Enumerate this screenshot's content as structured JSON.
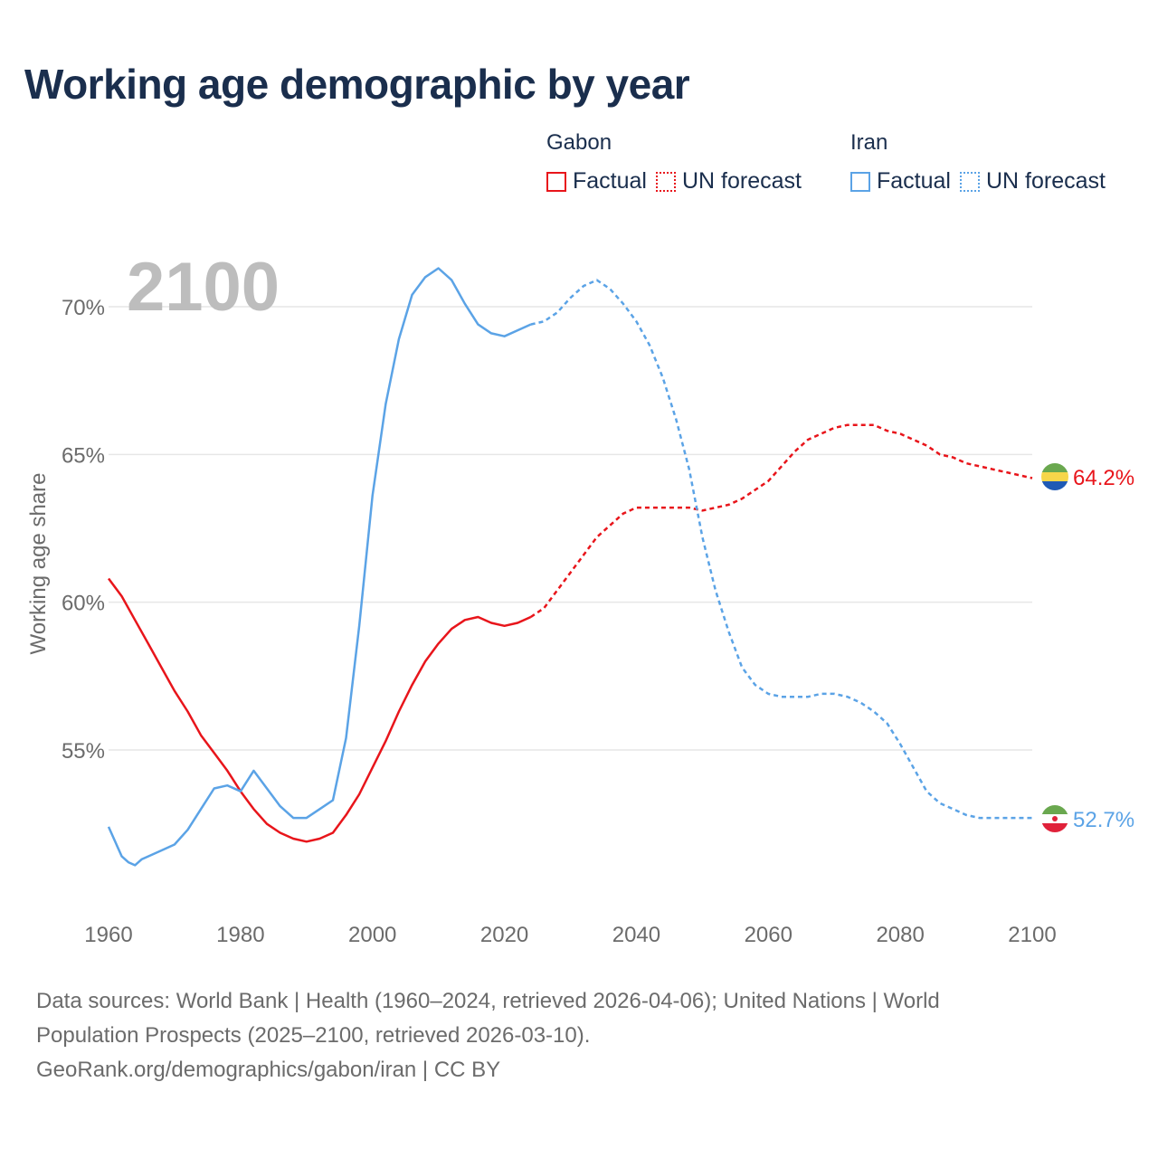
{
  "title": "Working age demographic by year",
  "legend": {
    "groups": [
      {
        "country": "Gabon",
        "factual_label": "Factual",
        "forecast_label": "UN forecast",
        "color": "#e8151b"
      },
      {
        "country": "Iran",
        "factual_label": "Factual",
        "forecast_label": "UN forecast",
        "color": "#5ba3e6"
      }
    ]
  },
  "chart_data": {
    "type": "line",
    "title": "Working age demographic by year",
    "xlabel": "",
    "ylabel": "Working age share",
    "year_display": "2100",
    "xlim": [
      1960,
      2100
    ],
    "ylim": [
      50,
      72
    ],
    "x_ticks": [
      1960,
      1980,
      2000,
      2020,
      2040,
      2060,
      2080,
      2100
    ],
    "y_ticks": [
      55,
      60,
      65,
      70
    ],
    "y_tick_labels": [
      "55%",
      "60%",
      "65%",
      "70%"
    ],
    "grid": true,
    "series": [
      {
        "name": "Gabon",
        "color": "#e8151b",
        "end_label": "64.2%",
        "flag_icon": "gabon-flag-icon",
        "factual": {
          "x": [
            1960,
            1962,
            1964,
            1966,
            1968,
            1970,
            1972,
            1974,
            1976,
            1978,
            1980,
            1982,
            1984,
            1986,
            1988,
            1990,
            1992,
            1994,
            1996,
            1998,
            2000,
            2002,
            2004,
            2006,
            2008,
            2010,
            2012,
            2014,
            2016,
            2018,
            2020,
            2022,
            2024
          ],
          "y": [
            60.8,
            60.2,
            59.4,
            58.6,
            57.8,
            57.0,
            56.3,
            55.5,
            54.9,
            54.3,
            53.6,
            53.0,
            52.5,
            52.2,
            52.0,
            51.9,
            52.0,
            52.2,
            52.8,
            53.5,
            54.4,
            55.3,
            56.3,
            57.2,
            58.0,
            58.6,
            59.1,
            59.4,
            59.5,
            59.3,
            59.2,
            59.3,
            59.5
          ]
        },
        "forecast": {
          "x": [
            2024,
            2026,
            2028,
            2030,
            2032,
            2034,
            2036,
            2038,
            2040,
            2042,
            2044,
            2046,
            2048,
            2050,
            2052,
            2054,
            2056,
            2058,
            2060,
            2062,
            2064,
            2066,
            2068,
            2070,
            2072,
            2074,
            2076,
            2078,
            2080,
            2082,
            2084,
            2086,
            2088,
            2090,
            2092,
            2094,
            2096,
            2098,
            2100
          ],
          "y": [
            59.5,
            59.8,
            60.4,
            61.0,
            61.6,
            62.2,
            62.6,
            63.0,
            63.2,
            63.2,
            63.2,
            63.2,
            63.2,
            63.1,
            63.2,
            63.3,
            63.5,
            63.8,
            64.1,
            64.6,
            65.1,
            65.5,
            65.7,
            65.9,
            66.0,
            66.0,
            66.0,
            65.8,
            65.7,
            65.5,
            65.3,
            65.0,
            64.9,
            64.7,
            64.6,
            64.5,
            64.4,
            64.3,
            64.2
          ]
        }
      },
      {
        "name": "Iran",
        "color": "#5ba3e6",
        "end_label": "52.7%",
        "flag_icon": "iran-flag-icon",
        "factual": {
          "x": [
            1960,
            1961,
            1962,
            1963,
            1964,
            1965,
            1966,
            1968,
            1970,
            1972,
            1974,
            1976,
            1978,
            1980,
            1982,
            1984,
            1986,
            1988,
            1990,
            1992,
            1994,
            1996,
            1998,
            2000,
            2002,
            2004,
            2006,
            2008,
            2010,
            2012,
            2014,
            2016,
            2018,
            2020,
            2022,
            2024
          ],
          "y": [
            52.4,
            51.9,
            51.4,
            51.2,
            51.1,
            51.3,
            51.4,
            51.6,
            51.8,
            52.3,
            53.0,
            53.7,
            53.8,
            53.6,
            54.3,
            53.7,
            53.1,
            52.7,
            52.7,
            53.0,
            53.3,
            55.4,
            59.2,
            63.6,
            66.7,
            68.9,
            70.4,
            71.0,
            71.3,
            70.9,
            70.1,
            69.4,
            69.1,
            69.0,
            69.2,
            69.4
          ]
        },
        "forecast": {
          "x": [
            2024,
            2026,
            2028,
            2030,
            2032,
            2034,
            2036,
            2038,
            2040,
            2042,
            2044,
            2046,
            2048,
            2050,
            2052,
            2054,
            2056,
            2058,
            2060,
            2062,
            2064,
            2066,
            2068,
            2070,
            2072,
            2074,
            2076,
            2078,
            2080,
            2082,
            2084,
            2086,
            2088,
            2090,
            2092,
            2094,
            2096,
            2098,
            2100
          ],
          "y": [
            69.4,
            69.5,
            69.8,
            70.3,
            70.7,
            70.9,
            70.6,
            70.1,
            69.5,
            68.7,
            67.6,
            66.2,
            64.5,
            62.2,
            60.4,
            59.0,
            57.8,
            57.2,
            56.9,
            56.8,
            56.8,
            56.8,
            56.9,
            56.9,
            56.8,
            56.6,
            56.3,
            55.9,
            55.2,
            54.4,
            53.6,
            53.2,
            53.0,
            52.8,
            52.7,
            52.7,
            52.7,
            52.7,
            52.7
          ]
        }
      }
    ]
  },
  "footer": {
    "line1": "Data sources: World Bank | Health (1960–2024, retrieved 2026-04-06); United Nations | World",
    "line2": "Population Prospects (2025–2100, retrieved 2026-03-10).",
    "line3": "GeoRank.org/demographics/gabon/iran | CC BY"
  }
}
